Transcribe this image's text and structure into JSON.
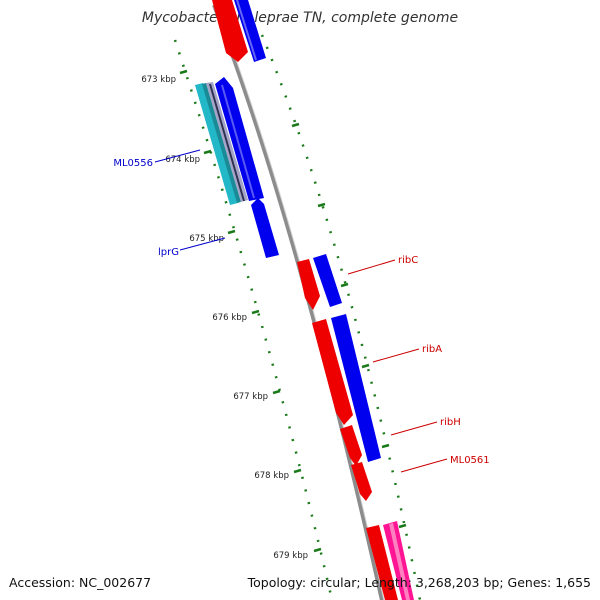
{
  "title": "Mycobacterium leprae TN, complete genome",
  "accession": "Accession: NC_002677",
  "summary": "Topology: circular; Length: 3,268,203 bp; Genes: 1,655",
  "colors": {
    "backbone": "#8c8c8c",
    "tick": "#1a7a1a",
    "forward_gene": "#0000ee",
    "reverse_gene": "#ee0000",
    "rna_gene": "#ff1493",
    "pseudogene": "#22b8c8",
    "label_left": "#0000cc",
    "label_right": "#cc0000"
  },
  "scale_labels": [
    "673 kbp",
    "674 kbp",
    "675 kbp",
    "676 kbp",
    "677 kbp",
    "678 kbp",
    "679 kbp"
  ],
  "gene_labels_left": [
    "ML0556",
    "lprG"
  ],
  "gene_labels_right": [
    "ribC",
    "ribA",
    "ribH",
    "ML0561"
  ]
}
